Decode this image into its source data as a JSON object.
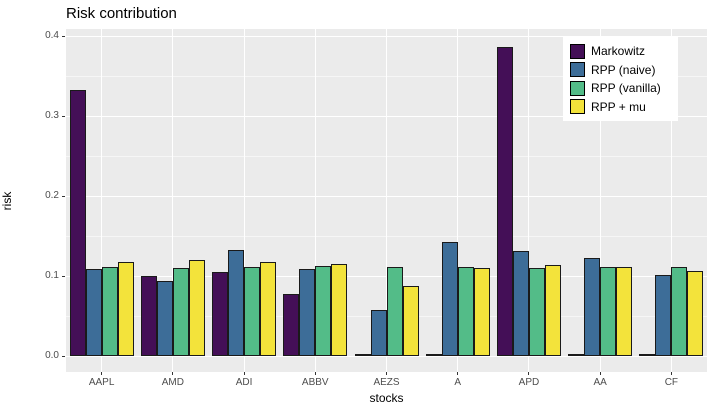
{
  "title": "Risk contribution",
  "axes": {
    "x_title": "stocks",
    "y_title": "risk",
    "y_tick_labels": [
      "0.0",
      "0.1",
      "0.2",
      "0.3",
      "0.4"
    ]
  },
  "legend": {
    "entries": [
      {
        "label": "Markowitz",
        "color": "#440f57"
      },
      {
        "label": "RPP (naive)",
        "color": "#3d6d98"
      },
      {
        "label": "RPP (vanilla)",
        "color": "#53bc88"
      },
      {
        "label": "RPP + mu",
        "color": "#f3e33b"
      }
    ]
  },
  "colors": {
    "panel_background": "#ebebeb",
    "grid_major": "#ffffff",
    "bar_edge": "#1a1a1a",
    "tick_text": "#4d4d4d",
    "series": [
      "#440f57",
      "#3d6d98",
      "#53bc88",
      "#f3e33b"
    ]
  },
  "chart_data": {
    "type": "bar",
    "title": "Risk contribution",
    "xlabel": "stocks",
    "ylabel": "risk",
    "categories": [
      "AAPL",
      "AMD",
      "ADI",
      "ABBV",
      "AEZS",
      "A",
      "APD",
      "AA",
      "CF"
    ],
    "series": [
      {
        "name": "Markowitz",
        "color": "#440f57",
        "values": [
          0.333,
          0.1,
          0.105,
          0.077,
          0.002,
          0.002,
          0.386,
          0.002,
          0.002
        ]
      },
      {
        "name": "RPP (naive)",
        "color": "#3d6d98",
        "values": [
          0.109,
          0.094,
          0.132,
          0.109,
          0.057,
          0.143,
          0.131,
          0.123,
          0.101
        ]
      },
      {
        "name": "RPP (vanilla)",
        "color": "#53bc88",
        "values": [
          0.111,
          0.11,
          0.111,
          0.112,
          0.111,
          0.111,
          0.11,
          0.111,
          0.111
        ]
      },
      {
        "name": "RPP + mu",
        "color": "#f3e33b",
        "values": [
          0.117,
          0.12,
          0.117,
          0.115,
          0.088,
          0.11,
          0.114,
          0.111,
          0.106
        ]
      }
    ],
    "ylim": [
      0.0,
      0.4
    ],
    "yticks": [
      0.0,
      0.1,
      0.2,
      0.3,
      0.4
    ],
    "yticks_minor": [
      0.05,
      0.15,
      0.25,
      0.35
    ],
    "grid": "white major and minor horizontal lines, white vertical lines at each category, on light gray panel",
    "legend_position": "inside top-right",
    "bar_grouping": "dodged"
  }
}
